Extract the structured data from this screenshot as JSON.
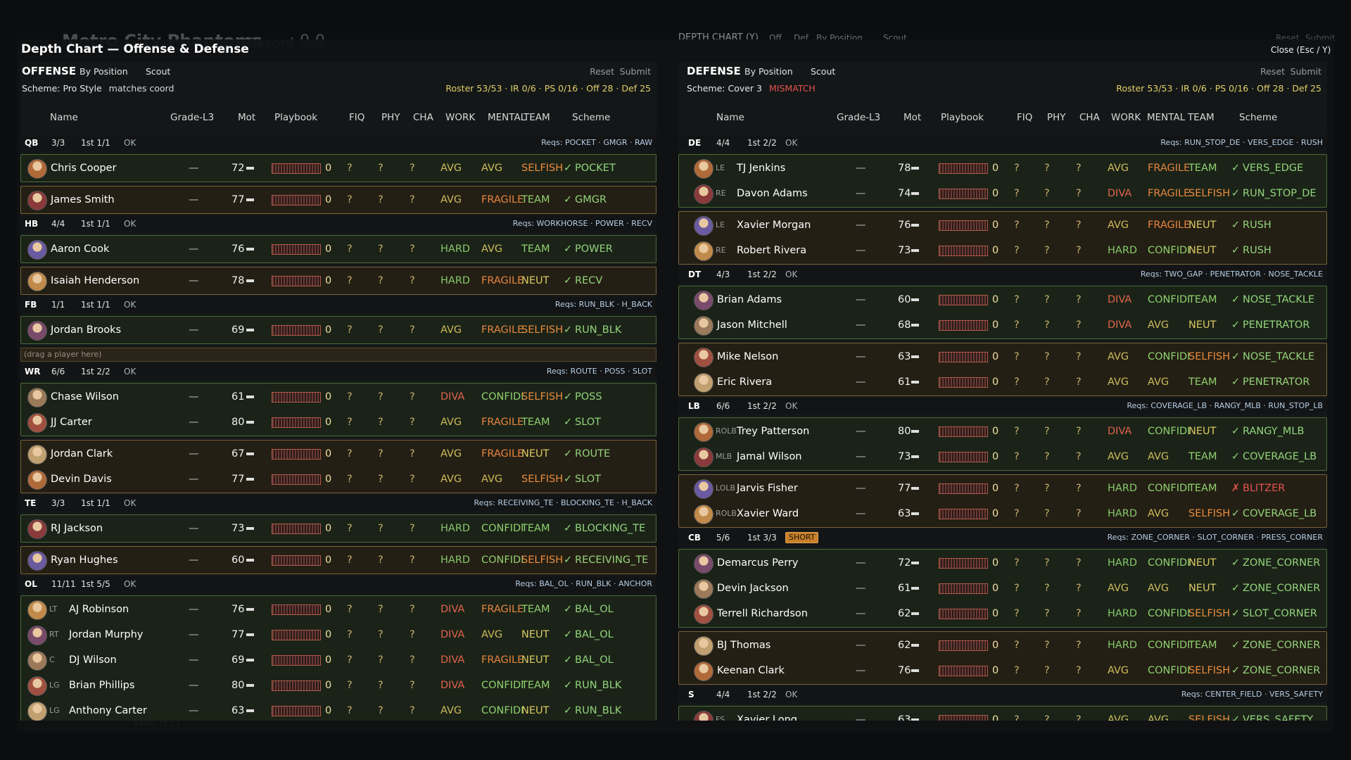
{
  "background": {
    "team": "Metro City Phantoms",
    "record_label": "Record",
    "record": "0-0",
    "screen": "DEPTH CHART (Y)",
    "tabs": [
      "Off",
      "Def",
      "By Position",
      "Scout"
    ],
    "close": "Close (Esc / Y)",
    "reset": "Reset",
    "submit": "Submit",
    "wiki": "Wiki (F1)"
  },
  "modal": {
    "title": "Depth Chart — Offense & Defense"
  },
  "tones": {
    "AVG": "#cdbb5c",
    "HARD": "#86c86c",
    "DIVA": "#e0634c",
    "FRAGILE": "#e5843e",
    "CONFIDI": "#8fd06e",
    "SELFISH": "#ea8c3c",
    "TEAM": "#8fd06e",
    "NEUT": "#d8c862",
    "✓": "#93d47c",
    "✗": "#e4534f"
  },
  "panels": [
    {
      "label": "OFFENSE",
      "view": "By Position",
      "scout": "Scout",
      "reset": "Reset",
      "submit": "Submit",
      "scheme": "Scheme: Pro Style",
      "scheme_status": "matches coord",
      "scheme_status_color": "#d8d8d8",
      "roster": "Roster 53/53 · IR 0/6 · PS 0/16 · Off 28 · Def 25",
      "columns": [
        "Name",
        "Grade-L3",
        "Mot",
        "Playbook",
        "FIQ",
        "PHY",
        "CHA",
        "WORK",
        "MENTAL",
        "TEAM",
        "Scheme"
      ],
      "groups": [
        {
          "pos": "QB",
          "count": "3/3",
          "starters": "1st 1/1",
          "status": "OK",
          "reqs": "Reqs: POCKET · GMGR · RAW",
          "boxes": [
            [
              {
                "name": "Chris Cooper",
                "cells": [
                  "—",
                  72,
                  0,
                  "?",
                  "?",
                  "?",
                  "AVG",
                  "AVG",
                  "SELFISH",
                  "✓",
                  "POCKET"
                ]
              }
            ],
            [
              {
                "name": "James Smith",
                "cells": [
                  "—",
                  77,
                  0,
                  "?",
                  "?",
                  "?",
                  "AVG",
                  "FRAGILE",
                  "TEAM",
                  "✓",
                  "GMGR"
                ]
              }
            ]
          ]
        },
        {
          "pos": "HB",
          "count": "4/4",
          "starters": "1st 1/1",
          "status": "OK",
          "reqs": "Reqs: WORKHORSE · POWER · RECV",
          "boxes": [
            [
              {
                "name": "Aaron Cook",
                "cells": [
                  "—",
                  76,
                  0,
                  "?",
                  "?",
                  "?",
                  "HARD",
                  "AVG",
                  "TEAM",
                  "✓",
                  "POWER"
                ]
              }
            ],
            [
              {
                "name": "Isaiah Henderson",
                "cells": [
                  "—",
                  78,
                  0,
                  "?",
                  "?",
                  "?",
                  "HARD",
                  "FRAGILE",
                  "NEUT",
                  "✓",
                  "RECV"
                ]
              }
            ]
          ]
        },
        {
          "pos": "FB",
          "count": "1/1",
          "starters": "1st 1/1",
          "status": "OK",
          "reqs": "Reqs: RUN_BLK · H_BACK",
          "boxes": [
            [
              {
                "name": "Jordan Brooks",
                "cells": [
                  "—",
                  69,
                  0,
                  "?",
                  "?",
                  "?",
                  "AVG",
                  "FRAGILE",
                  "SELFISH",
                  "✓",
                  "RUN_BLK"
                ]
              }
            ]
          ],
          "empty_slot": "(drag a player here)"
        },
        {
          "pos": "WR",
          "count": "6/6",
          "starters": "1st 2/2",
          "status": "OK",
          "reqs": "Reqs: ROUTE · POSS · SLOT",
          "boxes": [
            [
              {
                "name": "Chase Wilson",
                "cells": [
                  "—",
                  61,
                  0,
                  "?",
                  "?",
                  "?",
                  "DIVA",
                  "CONFIDI",
                  "SELFISH",
                  "✓",
                  "POSS"
                ]
              },
              {
                "name": "JJ Carter",
                "cells": [
                  "—",
                  80,
                  0,
                  "?",
                  "?",
                  "?",
                  "AVG",
                  "FRAGILE",
                  "TEAM",
                  "✓",
                  "SLOT"
                ]
              }
            ],
            [
              {
                "name": "Jordan Clark",
                "cells": [
                  "—",
                  67,
                  0,
                  "?",
                  "?",
                  "?",
                  "AVG",
                  "FRAGILE",
                  "NEUT",
                  "✓",
                  "ROUTE"
                ]
              },
              {
                "name": "Devin Davis",
                "cells": [
                  "—",
                  77,
                  0,
                  "?",
                  "?",
                  "?",
                  "AVG",
                  "AVG",
                  "SELFISH",
                  "✓",
                  "SLOT"
                ]
              }
            ]
          ]
        },
        {
          "pos": "TE",
          "count": "3/3",
          "starters": "1st 1/1",
          "status": "OK",
          "reqs": "Reqs: RECEIVING_TE · BLOCKING_TE · H_BACK",
          "boxes": [
            [
              {
                "name": "RJ Jackson",
                "cells": [
                  "—",
                  73,
                  0,
                  "?",
                  "?",
                  "?",
                  "HARD",
                  "CONFIDI",
                  "TEAM",
                  "✓",
                  "BLOCKING_TE"
                ]
              }
            ],
            [
              {
                "name": "Ryan Hughes",
                "cells": [
                  "—",
                  60,
                  0,
                  "?",
                  "?",
                  "?",
                  "HARD",
                  "CONFIDI",
                  "SELFISH",
                  "✓",
                  "RECEIVING_TE"
                ]
              }
            ]
          ]
        },
        {
          "pos": "OL",
          "count": "11/11",
          "starters": "1st 5/5",
          "status": "OK",
          "reqs": "Reqs: BAL_OL · RUN_BLK · ANCHOR",
          "boxes": [
            [
              {
                "pos": "LT",
                "name": "AJ Robinson",
                "cells": [
                  "—",
                  76,
                  0,
                  "?",
                  "?",
                  "?",
                  "DIVA",
                  "FRAGILE",
                  "TEAM",
                  "✓",
                  "BAL_OL"
                ]
              },
              {
                "pos": "RT",
                "name": "Jordan Murphy",
                "cells": [
                  "—",
                  77,
                  0,
                  "?",
                  "?",
                  "?",
                  "DIVA",
                  "AVG",
                  "NEUT",
                  "✓",
                  "BAL_OL"
                ]
              },
              {
                "pos": "C",
                "name": "DJ Wilson",
                "cells": [
                  "—",
                  69,
                  0,
                  "?",
                  "?",
                  "?",
                  "DIVA",
                  "FRAGILE",
                  "NEUT",
                  "✓",
                  "BAL_OL"
                ]
              },
              {
                "pos": "LG",
                "name": "Brian Phillips",
                "cells": [
                  "—",
                  80,
                  0,
                  "?",
                  "?",
                  "?",
                  "DIVA",
                  "CONFIDI",
                  "TEAM",
                  "✓",
                  "RUN_BLK"
                ]
              },
              {
                "pos": "LG",
                "name": "Anthony Carter",
                "cells": [
                  "—",
                  63,
                  0,
                  "?",
                  "?",
                  "?",
                  "AVG",
                  "CONFIDI",
                  "NEUT",
                  "✓",
                  "RUN_BLK"
                ]
              }
            ]
          ]
        }
      ]
    },
    {
      "label": "DEFENSE",
      "view": "By Position",
      "scout": "Scout",
      "reset": "Reset",
      "submit": "Submit",
      "scheme": "Scheme: Cover 3",
      "scheme_status": "MISMATCH",
      "scheme_status_color": "#e4534f",
      "roster": "Roster 53/53 · IR 0/6 · PS 0/16 · Off 28 · Def 25",
      "columns": [
        "Name",
        "Grade-L3",
        "Mot",
        "Playbook",
        "FIQ",
        "PHY",
        "CHA",
        "WORK",
        "MENTAL",
        "TEAM",
        "Scheme"
      ],
      "groups": [
        {
          "pos": "DE",
          "count": "4/4",
          "starters": "1st 2/2",
          "status": "OK",
          "reqs": "Reqs: RUN_STOP_DE · VERS_EDGE · RUSH",
          "boxes": [
            [
              {
                "pos": "LE",
                "name": "TJ Jenkins",
                "cells": [
                  "—",
                  78,
                  0,
                  "?",
                  "?",
                  "?",
                  "AVG",
                  "FRAGILE",
                  "TEAM",
                  "✓",
                  "VERS_EDGE"
                ]
              },
              {
                "pos": "RE",
                "name": "Davon Adams",
                "cells": [
                  "—",
                  74,
                  0,
                  "?",
                  "?",
                  "?",
                  "DIVA",
                  "FRAGILE",
                  "SELFISH",
                  "✓",
                  "RUN_STOP_DE"
                ]
              }
            ],
            [
              {
                "pos": "LE",
                "name": "Xavier Morgan",
                "cells": [
                  "—",
                  76,
                  0,
                  "?",
                  "?",
                  "?",
                  "AVG",
                  "FRAGILE",
                  "NEUT",
                  "✓",
                  "RUSH"
                ]
              },
              {
                "pos": "RE",
                "name": "Robert Rivera",
                "cells": [
                  "—",
                  73,
                  0,
                  "?",
                  "?",
                  "?",
                  "HARD",
                  "CONFIDI",
                  "NEUT",
                  "✓",
                  "RUSH"
                ]
              }
            ]
          ]
        },
        {
          "pos": "DT",
          "count": "4/3",
          "starters": "1st 2/2",
          "status": "OK",
          "reqs": "Reqs: TWO_GAP · PENETRATOR · NOSE_TACKLE",
          "boxes": [
            [
              {
                "name": "Brian Adams",
                "cells": [
                  "—",
                  60,
                  0,
                  "?",
                  "?",
                  "?",
                  "DIVA",
                  "CONFIDI",
                  "TEAM",
                  "✓",
                  "NOSE_TACKLE"
                ]
              },
              {
                "name": "Jason Mitchell",
                "cells": [
                  "—",
                  68,
                  0,
                  "?",
                  "?",
                  "?",
                  "DIVA",
                  "AVG",
                  "NEUT",
                  "✓",
                  "PENETRATOR"
                ]
              }
            ],
            [
              {
                "name": "Mike Nelson",
                "cells": [
                  "—",
                  63,
                  0,
                  "?",
                  "?",
                  "?",
                  "AVG",
                  "CONFIDI",
                  "SELFISH",
                  "✓",
                  "NOSE_TACKLE"
                ]
              },
              {
                "name": "Eric Rivera",
                "cells": [
                  "—",
                  61,
                  0,
                  "?",
                  "?",
                  "?",
                  "AVG",
                  "AVG",
                  "TEAM",
                  "✓",
                  "PENETRATOR"
                ]
              }
            ]
          ]
        },
        {
          "pos": "LB",
          "count": "6/6",
          "starters": "1st 2/2",
          "status": "OK",
          "reqs": "Reqs: COVERAGE_LB · RANGY_MLB · RUN_STOP_LB",
          "boxes": [
            [
              {
                "pos": "ROLB",
                "name": "Trey Patterson",
                "cells": [
                  "—",
                  80,
                  0,
                  "?",
                  "?",
                  "?",
                  "DIVA",
                  "CONFIDI",
                  "NEUT",
                  "✓",
                  "RANGY_MLB"
                ]
              },
              {
                "pos": "MLB",
                "name": "Jamal Wilson",
                "cells": [
                  "—",
                  73,
                  0,
                  "?",
                  "?",
                  "?",
                  "AVG",
                  "AVG",
                  "TEAM",
                  "✓",
                  "COVERAGE_LB"
                ]
              }
            ],
            [
              {
                "pos": "LOLB",
                "name": "Jarvis Fisher",
                "cells": [
                  "—",
                  77,
                  0,
                  "?",
                  "?",
                  "?",
                  "HARD",
                  "CONFIDI",
                  "TEAM",
                  "✗",
                  "BLITZER"
                ]
              },
              {
                "pos": "ROLB",
                "name": "Xavier Ward",
                "cells": [
                  "—",
                  63,
                  0,
                  "?",
                  "?",
                  "?",
                  "HARD",
                  "AVG",
                  "SELFISH",
                  "✓",
                  "COVERAGE_LB"
                ]
              }
            ]
          ]
        },
        {
          "pos": "CB",
          "count": "5/6",
          "starters": "1st 3/3",
          "status": "SHORT",
          "status_badge": true,
          "reqs": "Reqs: ZONE_CORNER · SLOT_CORNER · PRESS_CORNER",
          "boxes": [
            [
              {
                "name": "Demarcus Perry",
                "cells": [
                  "—",
                  72,
                  0,
                  "?",
                  "?",
                  "?",
                  "HARD",
                  "CONFIDI",
                  "NEUT",
                  "✓",
                  "ZONE_CORNER"
                ]
              },
              {
                "name": "Devin Jackson",
                "cells": [
                  "—",
                  61,
                  0,
                  "?",
                  "?",
                  "?",
                  "AVG",
                  "AVG",
                  "NEUT",
                  "✓",
                  "ZONE_CORNER"
                ]
              },
              {
                "name": "Terrell Richardson",
                "cells": [
                  "—",
                  62,
                  0,
                  "?",
                  "?",
                  "?",
                  "HARD",
                  "CONFIDI",
                  "SELFISH",
                  "✓",
                  "SLOT_CORNER"
                ]
              }
            ],
            [
              {
                "name": "BJ Thomas",
                "cells": [
                  "—",
                  62,
                  0,
                  "?",
                  "?",
                  "?",
                  "HARD",
                  "CONFIDI",
                  "TEAM",
                  "✓",
                  "ZONE_CORNER"
                ]
              },
              {
                "name": "Keenan Clark",
                "cells": [
                  "—",
                  76,
                  0,
                  "?",
                  "?",
                  "?",
                  "AVG",
                  "CONFIDI",
                  "SELFISH",
                  "✓",
                  "ZONE_CORNER"
                ]
              }
            ]
          ]
        },
        {
          "pos": "S",
          "count": "4/4",
          "starters": "1st 2/2",
          "status": "OK",
          "reqs": "Reqs: CENTER_FIELD · VERS_SAFETY",
          "boxes": [
            [
              {
                "pos": "FS",
                "name": "Xavier Long",
                "cells": [
                  "—",
                  63,
                  0,
                  "?",
                  "?",
                  "?",
                  "AVG",
                  "AVG",
                  "SELFISH",
                  "✓",
                  "VERS_SAFETY"
                ]
              }
            ]
          ]
        }
      ]
    }
  ]
}
